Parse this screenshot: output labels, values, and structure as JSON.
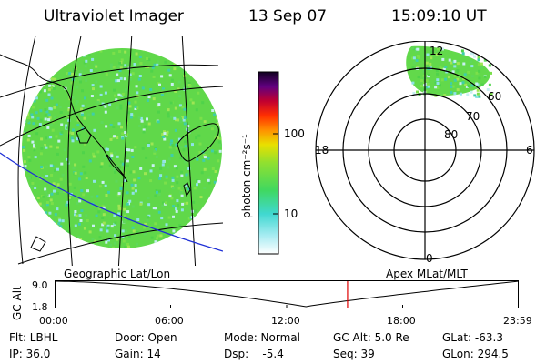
{
  "header": {
    "instrument": "Ultraviolet Imager",
    "date": "13 Sep 07",
    "time": "15:09:10 UT"
  },
  "colorbar": {
    "unit_label": "photon cm⁻²s⁻¹",
    "ticks": [
      "100",
      "10"
    ]
  },
  "polar_plot": {
    "mlt_labels": {
      "top": "12",
      "left": "18",
      "right": "6",
      "bottom": "0"
    },
    "mlat_labels": [
      "60",
      "70",
      "80"
    ]
  },
  "panel_labels": {
    "geographic": "Geographic Lat/Lon",
    "apex": "Apex  MLat/MLT"
  },
  "altitude_plot": {
    "ylabel": "GC Alt",
    "yticks": [
      "9.0",
      "1.8"
    ],
    "xticks": [
      "00:00",
      "06:00",
      "12:00",
      "18:00",
      "23:59"
    ],
    "marker_time": "15:09",
    "marker_color": "#e00000",
    "line_color": "#000000"
  },
  "info": {
    "flt": "Flt: LBHL",
    "ip": "IP: 36.0",
    "door": "Door: Open",
    "gain": "Gain: 14",
    "mode": "Mode: Normal",
    "dsp": "Dsp:    -5.4",
    "gc_alt": "GC Alt: 5.0 Re",
    "seq": "Seq: 39",
    "glat": "GLat: -63.3",
    "glon": "GLon: 294.5"
  },
  "colors": {
    "image_green": "#58d84a",
    "image_cyan": "#8fe3e8",
    "orbit_track": "#1e2fd6"
  }
}
